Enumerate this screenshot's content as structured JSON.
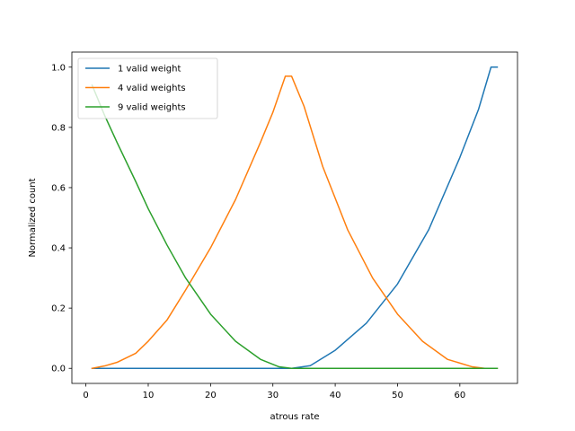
{
  "chart_data": {
    "type": "line",
    "title": "",
    "xlabel": "atrous rate",
    "ylabel": "Normalized count",
    "xlim": [
      -2.25,
      69.25
    ],
    "ylim": [
      -0.05,
      1.05
    ],
    "xticks": [
      0,
      10,
      20,
      30,
      40,
      50,
      60
    ],
    "yticks": [
      0.0,
      0.2,
      0.4,
      0.6,
      0.8,
      1.0
    ],
    "ytick_labels": [
      "0.0",
      "0.2",
      "0.4",
      "0.6",
      "0.8",
      "1.0"
    ],
    "grid": false,
    "legend": {
      "position": "top-left"
    },
    "series": [
      {
        "name": "1 valid weight",
        "color": "#1f77b4",
        "x": [
          1,
          5,
          10,
          15,
          20,
          25,
          30,
          33,
          36,
          40,
          45,
          50,
          55,
          60,
          63,
          65,
          66
        ],
        "y": [
          0,
          0,
          0,
          0,
          0,
          0,
          0,
          0,
          0.009,
          0.06,
          0.15,
          0.28,
          0.46,
          0.7,
          0.86,
          1.0,
          1.0
        ]
      },
      {
        "name": "4 valid weights",
        "color": "#ff7f0e",
        "x": [
          1,
          3,
          5,
          8,
          10,
          13,
          16,
          20,
          24,
          28,
          30,
          32,
          33,
          35,
          38,
          42,
          46,
          50,
          54,
          58,
          62,
          64,
          66
        ],
        "y": [
          0,
          0.008,
          0.02,
          0.05,
          0.09,
          0.16,
          0.26,
          0.4,
          0.56,
          0.75,
          0.85,
          0.97,
          0.97,
          0.87,
          0.67,
          0.46,
          0.3,
          0.18,
          0.09,
          0.03,
          0.005,
          0,
          0
        ]
      },
      {
        "name": "9 valid weights",
        "color": "#2ca02c",
        "x": [
          1,
          3,
          5,
          8,
          10,
          13,
          16,
          20,
          24,
          28,
          31,
          33,
          40,
          50,
          60,
          66
        ],
        "y": [
          0.94,
          0.84,
          0.75,
          0.62,
          0.53,
          0.41,
          0.3,
          0.18,
          0.09,
          0.03,
          0.005,
          0,
          0,
          0,
          0,
          0
        ]
      }
    ]
  }
}
